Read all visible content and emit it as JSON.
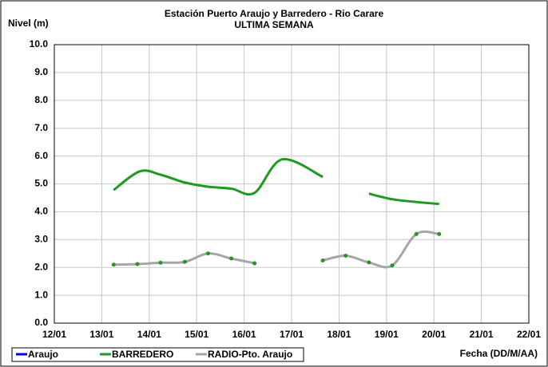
{
  "chart_data": {
    "type": "line",
    "title": "Estación Puerto Araujo y Barredero - Rio Carare",
    "subtitle": "ULTIMA SEMANA",
    "ylabel": "Nivel (m)",
    "xlabel": "Fecha (DD/M/AA)",
    "xlim": [
      12,
      22
    ],
    "xticks": [
      {
        "value": 12,
        "label": "12/01"
      },
      {
        "value": 13,
        "label": "13/01"
      },
      {
        "value": 14,
        "label": "14/01"
      },
      {
        "value": 15,
        "label": "15/01"
      },
      {
        "value": 16,
        "label": "16/01"
      },
      {
        "value": 17,
        "label": "17/01"
      },
      {
        "value": 18,
        "label": "18/01"
      },
      {
        "value": 19,
        "label": "19/01"
      },
      {
        "value": 20,
        "label": "20/01"
      },
      {
        "value": 21,
        "label": "21/01"
      },
      {
        "value": 22,
        "label": "22/01"
      }
    ],
    "ylim": [
      0,
      10
    ],
    "yticks": [
      {
        "value": 0,
        "label": "0.0"
      },
      {
        "value": 1,
        "label": "1.0"
      },
      {
        "value": 2,
        "label": "2.0"
      },
      {
        "value": 3,
        "label": "3.0"
      },
      {
        "value": 4,
        "label": "4.0"
      },
      {
        "value": 5,
        "label": "5.0"
      },
      {
        "value": 6,
        "label": "6.0"
      },
      {
        "value": 7,
        "label": "7.0"
      },
      {
        "value": 8,
        "label": "8.0"
      },
      {
        "value": 9,
        "label": "9.0"
      },
      {
        "value": 10,
        "label": "10.0"
      }
    ],
    "grid": true,
    "legend": "bottom",
    "series": [
      {
        "name": "Araujo",
        "color": "#0000ff",
        "x": [],
        "values": []
      },
      {
        "name": "BARREDERO",
        "color": "#1e9a1e",
        "markers": false,
        "x": [
          13.25,
          13.8,
          14.24,
          14.75,
          15.24,
          15.73,
          16.22,
          16.8,
          17.66,
          null,
          18.63,
          19.12,
          19.63,
          20.11
        ],
        "values": [
          4.78,
          5.45,
          5.33,
          5.05,
          4.9,
          4.83,
          4.68,
          5.88,
          5.25,
          null,
          4.65,
          4.45,
          4.35,
          4.28
        ]
      },
      {
        "name": "RADIO-Pto. Araujo",
        "color": "#a6a6a6",
        "markers": true,
        "marker_color": "#1e9a1e",
        "x": [
          13.25,
          13.75,
          14.24,
          14.75,
          15.24,
          15.73,
          16.22,
          null,
          17.66,
          18.14,
          18.63,
          19.12,
          19.63,
          20.11
        ],
        "values": [
          2.1,
          2.12,
          2.17,
          2.2,
          2.5,
          2.32,
          2.15,
          null,
          2.25,
          2.42,
          2.18,
          2.07,
          3.2,
          3.2
        ]
      }
    ]
  }
}
